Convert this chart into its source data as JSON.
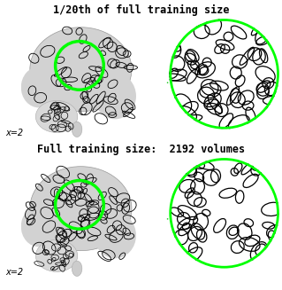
{
  "title_top": "1/20th of full training size",
  "title_bottom": "Full training size:  2192 volumes",
  "label_top": "x=2",
  "label_bottom": "x=2",
  "figsize": [
    3.19,
    3.27
  ],
  "dpi": 100,
  "bg_color": "#ffffff",
  "title_fontsize": 8.5,
  "label_fontsize": 7,
  "title_fontweight": "bold",
  "green_color": "#00ff00",
  "green_linewidth": 2.5,
  "arrow_color": "#00bb00"
}
